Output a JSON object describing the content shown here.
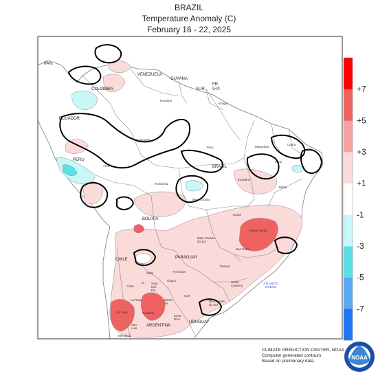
{
  "header": {
    "region": "BRAZIL",
    "title": "Temperature Anomaly (C)",
    "period": "February 16 - 22, 2025"
  },
  "legend": {
    "tick_labels": [
      "+7",
      "+5",
      "+3",
      "+1",
      "-1",
      "-3",
      "-5",
      "-7"
    ],
    "colors": [
      "#ff0000",
      "#f06262",
      "#f7a3a3",
      "#fbdada",
      "#ffffff",
      "#c7f7f7",
      "#58e0e6",
      "#5aa9f4",
      "#1d77f2"
    ]
  },
  "map_labels": {
    "countries": {
      "pan": "PAN.",
      "venezuela": "VENEZUELA",
      "guyana": "GUYANA",
      "suriname": "SUR.",
      "french_guiana": "FR.\nGUI.",
      "colombia": "COLOMBIA",
      "ecuador": "ECUADOR",
      "peru": "PERU",
      "brazil": "BRAZIL",
      "bolivia": "BOLIVIA",
      "paraguay": "PARAGUAY",
      "chile": "CHILE",
      "argentina": "ARGENTINA",
      "uruguay": "URUGUAY"
    },
    "states": {
      "roraima": "Roraima",
      "amapa": "Amapa",
      "amazonas": "Amazonas",
      "para": "Para",
      "maranhao": "Maranhao",
      "ceara": "Ceara",
      "rn": "RN",
      "piaui": "Piaui",
      "acre": "Acre",
      "rondonia": "Rondonia",
      "tocantins": "Tocantins",
      "bahia": "Bahia",
      "mato_grosso": "Mato Grosso",
      "goias": "Goias",
      "mato_grosso_do_sul": "Mato Grosso\ndo Sul",
      "minas_gerais": "Minas Gerais",
      "sao_paulo": "Sao Paulo",
      "parana": "Parana",
      "santa_catarina": "Santa\nCatarina",
      "rio_grande_do_sul": "Rio Grande\ndo Sul",
      "formosa": "Formosa",
      "chaco": "Chaco",
      "corr": "Corr",
      "salta": "Salta",
      "jujuy": "Jujuy",
      "tu": "Tu",
      "sant_del_est": "Sant.\nDel.\nEst.",
      "cata": "Cata.",
      "la_rioja": "La Rioja",
      "sa_juan": "Sa Juan",
      "cordoba": "Cordoba",
      "santa_fe": "Santa\nFe",
      "san_luis": "San\nLuis",
      "entre_rios": "Entre\nRios",
      "mendoza": "Mendoza"
    },
    "ocean": "ATLANTIC\nOCEAN"
  },
  "credits": {
    "line1": "CLIMATE PREDICTION CENTER, NOAA",
    "line2": "Computer generated contours",
    "line3": "Based on preliminary data"
  },
  "logo_text": "NOAA"
}
